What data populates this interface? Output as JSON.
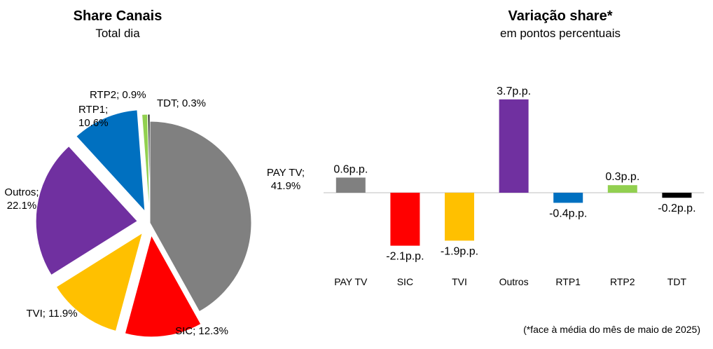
{
  "chart_data": [
    {
      "type": "pie",
      "title": "Share Canais",
      "subtitle": "Total dia",
      "categories": [
        "PAY TV",
        "SIC",
        "TVI",
        "Outros",
        "RTP1",
        "RTP2",
        "TDT"
      ],
      "values": [
        41.9,
        12.3,
        11.9,
        22.1,
        10.6,
        0.9,
        0.3
      ],
      "labels": [
        "PAY TV;\n41.9%",
        "SIC; 12.3%",
        "TVI; 11.9%",
        "Outros;\n22.1%",
        "RTP1;\n10.6%",
        "RTP2; 0.9%",
        "TDT; 0.3%"
      ],
      "colors": [
        "#808080",
        "#ff0000",
        "#ffc000",
        "#7030a0",
        "#0070c0",
        "#92d050",
        "#000000"
      ]
    },
    {
      "type": "bar",
      "title": "Variação share*",
      "subtitle": "em pontos percentuais",
      "categories": [
        "PAY TV",
        "SIC",
        "TVI",
        "Outros",
        "RTP1",
        "RTP2",
        "TDT"
      ],
      "values": [
        0.6,
        -2.1,
        -1.9,
        3.7,
        -0.4,
        0.3,
        -0.2
      ],
      "value_labels": [
        "0.6p.p.",
        "-2.1p.p.",
        "-1.9p.p.",
        "3.7p.p.",
        "-0.4p.p.",
        "0.3p.p.",
        "-0.2p.p."
      ],
      "colors": [
        "#808080",
        "#ff0000",
        "#ffc000",
        "#7030a0",
        "#0070c0",
        "#92d050",
        "#000000"
      ],
      "footnote": "(*face à média do mês de maio de 2025)"
    }
  ]
}
